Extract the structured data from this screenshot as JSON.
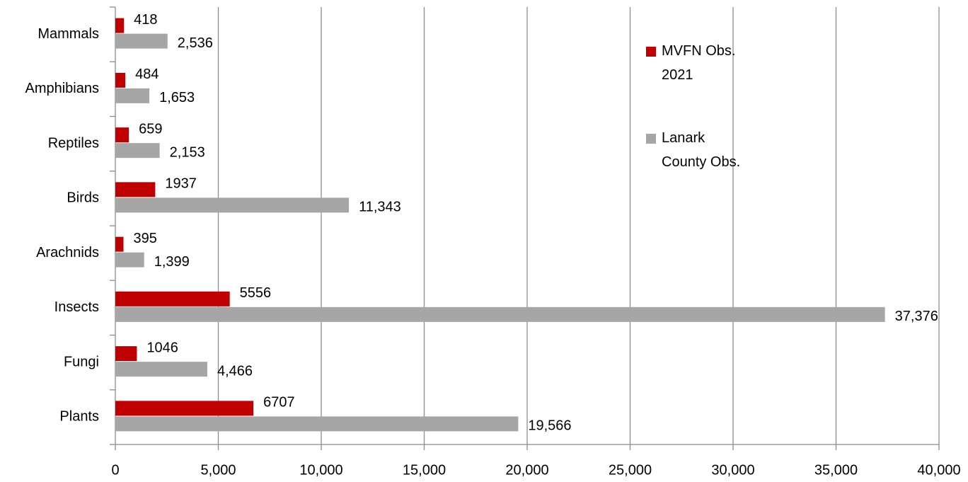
{
  "chart_data": {
    "type": "hbar",
    "categories": [
      "Mammals",
      "Amphibians",
      "Reptiles",
      "Birds",
      "Arachnids",
      "Insects",
      "Fungi",
      "Plants"
    ],
    "series": [
      {
        "name": "MVFN Obs. 2021",
        "color": "#c00000",
        "values": [
          418,
          484,
          659,
          1937,
          395,
          5556,
          1046,
          6707
        ]
      },
      {
        "name": "Lanark County Obs.",
        "color": "#a6a6a6",
        "values": [
          2536,
          1653,
          2153,
          11343,
          1399,
          37376,
          4466,
          19566
        ],
        "value_labels": [
          "2,536",
          "1,653",
          "2,153",
          "11,343",
          "1,399",
          "37,376",
          "4,466",
          "19,566"
        ]
      }
    ],
    "xlim": [
      0,
      40000
    ],
    "xticks": [
      0,
      {
        "value": 5000,
        "label": "5,000"
      },
      {
        "value": 10000,
        "label": "10,000"
      },
      {
        "value": 15000,
        "label": "15,000"
      },
      {
        "value": 20000,
        "label": "20,000"
      },
      {
        "value": 25000,
        "label": "25,000"
      },
      {
        "value": 30000,
        "label": "30,000"
      },
      {
        "value": 35000,
        "label": "35,000"
      },
      {
        "value": 40000,
        "label": "40,000"
      }
    ],
    "grid": true,
    "legend": "top-right"
  }
}
